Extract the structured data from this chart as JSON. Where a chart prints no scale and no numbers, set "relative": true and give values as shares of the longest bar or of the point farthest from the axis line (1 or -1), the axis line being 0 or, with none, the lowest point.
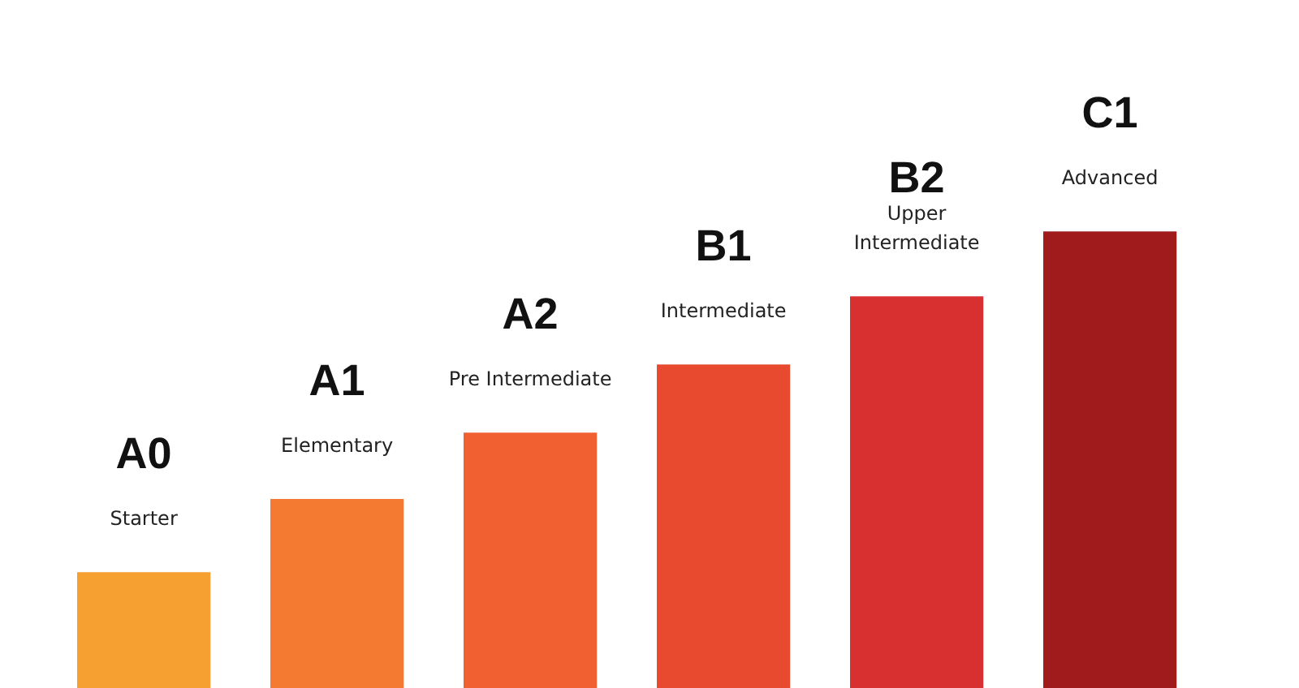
{
  "chart_data": {
    "type": "bar",
    "relative": true,
    "tick_labels": false,
    "grid": false,
    "categories": [
      "A0",
      "A1",
      "A2",
      "B1",
      "B2",
      "C1"
    ],
    "values": [
      0.255,
      0.415,
      0.56,
      0.709,
      0.858,
      1
    ],
    "colors": [
      "#f5a030",
      "#f37a30",
      "#f06030",
      "#e84a30",
      "#d83030",
      "#a01c1c"
    ],
    "annotations": [
      {
        "text": "Starter",
        "x": "A0",
        "y": 0.255
      },
      {
        "text": "Elementary",
        "x": "A1",
        "y": 0.415
      },
      {
        "text": "Pre Intermediate",
        "x": "A2",
        "y": 0.56
      },
      {
        "text": "Intermediate",
        "x": "B1",
        "y": 0.709
      },
      {
        "text": "Upper\nIntermediate",
        "x": "B2",
        "y": 0.858
      },
      {
        "text": "Advanced",
        "x": "C1",
        "y": 1
      }
    ]
  }
}
